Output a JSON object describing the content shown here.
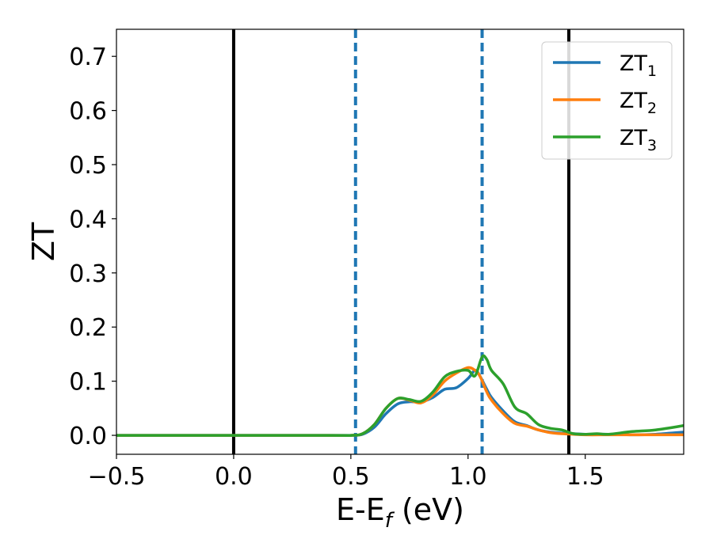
{
  "chart_data": {
    "type": "line",
    "xlabel_main": "E-E",
    "xlabel_sub": "f",
    "xlabel_unit": " (eV)",
    "ylabel": "ZT",
    "xlim": [
      -0.5,
      1.92
    ],
    "ylim": [
      -0.035,
      0.75
    ],
    "x_ticks": [
      {
        "value": -0.5,
        "label": "−0.5"
      },
      {
        "value": 0.0,
        "label": "0.0"
      },
      {
        "value": 0.5,
        "label": "0.5"
      },
      {
        "value": 1.0,
        "label": "1.0"
      },
      {
        "value": 1.5,
        "label": "1.5"
      }
    ],
    "y_ticks": [
      {
        "value": 0.0,
        "label": "0.0"
      },
      {
        "value": 0.1,
        "label": "0.1"
      },
      {
        "value": 0.2,
        "label": "0.2"
      },
      {
        "value": 0.3,
        "label": "0.3"
      },
      {
        "value": 0.4,
        "label": "0.4"
      },
      {
        "value": 0.5,
        "label": "0.5"
      },
      {
        "value": 0.6,
        "label": "0.6"
      },
      {
        "value": 0.7,
        "label": "0.7"
      }
    ],
    "vlines": [
      {
        "x": 0.0,
        "style": "solid",
        "color": "#000000"
      },
      {
        "x": 1.43,
        "style": "solid",
        "color": "#000000"
      },
      {
        "x": 0.52,
        "style": "dashed",
        "color": "#1f77b4"
      },
      {
        "x": 1.06,
        "style": "dashed",
        "color": "#1f77b4"
      }
    ],
    "legend_position": "top-right",
    "series": [
      {
        "name": "ZT",
        "sub": "1",
        "color": "#1f77b4",
        "x": [
          -0.5,
          0.4,
          0.5,
          0.55,
          0.6,
          0.65,
          0.7,
          0.75,
          0.8,
          0.85,
          0.9,
          0.95,
          1.0,
          1.03,
          1.05,
          1.08,
          1.1,
          1.15,
          1.2,
          1.25,
          1.3,
          1.35,
          1.4,
          1.45,
          1.5,
          1.6,
          1.7,
          1.8,
          1.92
        ],
        "y": [
          0.0,
          0.0,
          0.0,
          0.002,
          0.015,
          0.04,
          0.058,
          0.062,
          0.062,
          0.07,
          0.085,
          0.088,
          0.105,
          0.12,
          0.11,
          0.085,
          0.07,
          0.045,
          0.025,
          0.018,
          0.01,
          0.006,
          0.004,
          0.003,
          0.002,
          0.002,
          0.001,
          0.002,
          0.006
        ]
      },
      {
        "name": "ZT",
        "sub": "2",
        "color": "#ff7f0e",
        "x": [
          -0.5,
          0.4,
          0.5,
          0.55,
          0.6,
          0.65,
          0.7,
          0.75,
          0.8,
          0.85,
          0.9,
          0.95,
          1.0,
          1.03,
          1.05,
          1.08,
          1.1,
          1.15,
          1.2,
          1.25,
          1.3,
          1.35,
          1.4,
          1.45,
          1.5,
          1.6,
          1.7,
          1.8,
          1.92
        ],
        "y": [
          0.0,
          0.0,
          0.0,
          0.003,
          0.02,
          0.05,
          0.068,
          0.065,
          0.06,
          0.075,
          0.1,
          0.115,
          0.125,
          0.12,
          0.11,
          0.08,
          0.065,
          0.04,
          0.022,
          0.017,
          0.01,
          0.005,
          0.003,
          0.002,
          0.001,
          0.001,
          0.001,
          0.001,
          0.001
        ]
      },
      {
        "name": "ZT",
        "sub": "3",
        "color": "#2ca02c",
        "x": [
          -0.5,
          0.4,
          0.5,
          0.55,
          0.6,
          0.65,
          0.7,
          0.75,
          0.8,
          0.85,
          0.9,
          0.95,
          1.0,
          1.03,
          1.06,
          1.08,
          1.1,
          1.15,
          1.2,
          1.25,
          1.3,
          1.35,
          1.4,
          1.45,
          1.5,
          1.55,
          1.6,
          1.7,
          1.8,
          1.92
        ],
        "y": [
          0.0,
          0.0,
          0.0,
          0.003,
          0.02,
          0.05,
          0.068,
          0.066,
          0.063,
          0.08,
          0.108,
          0.118,
          0.12,
          0.11,
          0.145,
          0.14,
          0.12,
          0.095,
          0.052,
          0.04,
          0.02,
          0.013,
          0.01,
          0.003,
          0.002,
          0.003,
          0.002,
          0.007,
          0.01,
          0.018
        ]
      }
    ]
  }
}
